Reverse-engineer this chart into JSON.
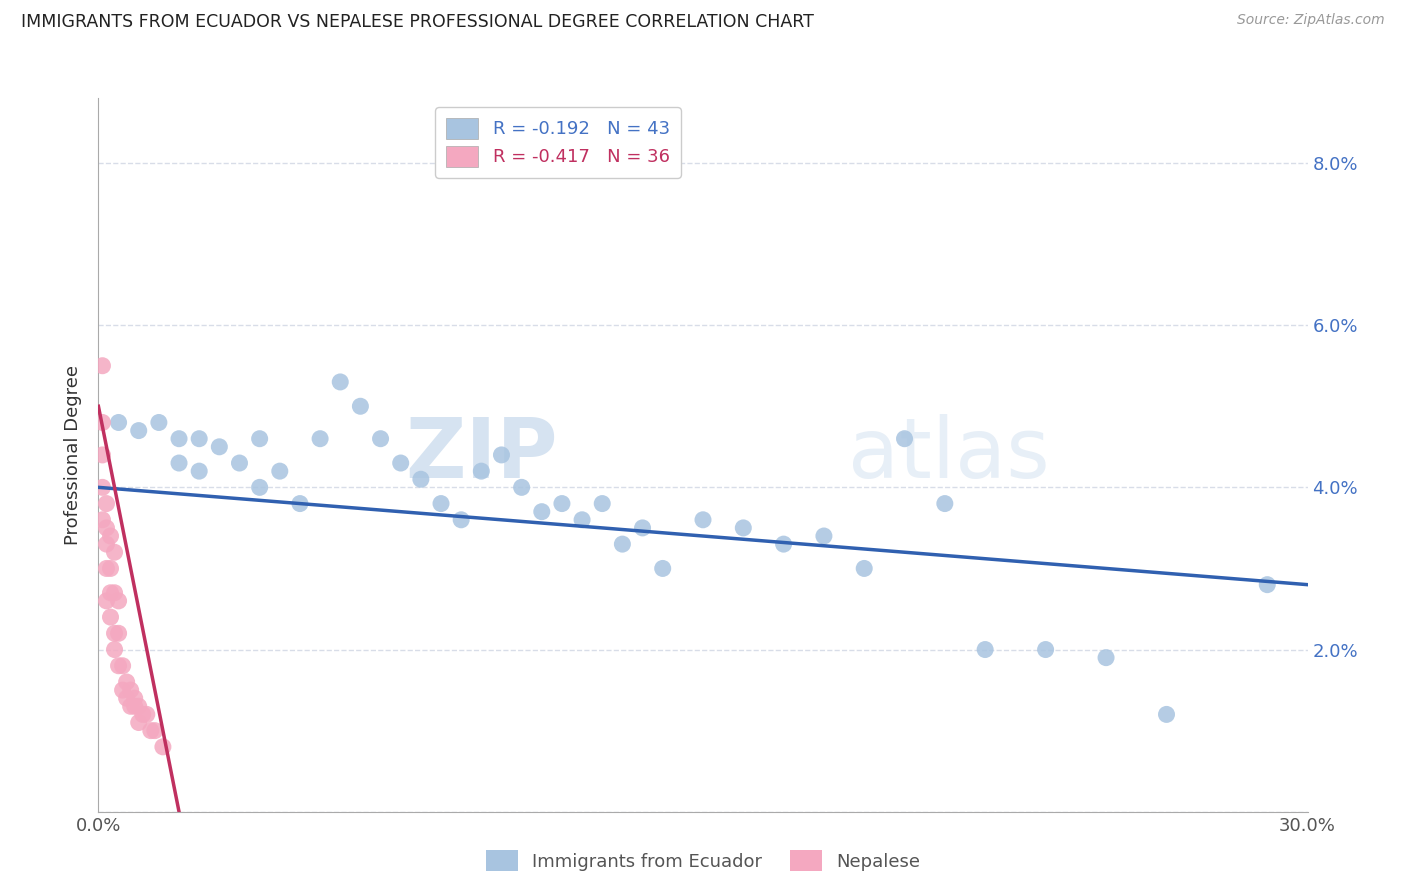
{
  "title": "IMMIGRANTS FROM ECUADOR VS NEPALESE PROFESSIONAL DEGREE CORRELATION CHART",
  "source": "Source: ZipAtlas.com",
  "ylabel": "Professional Degree",
  "x_min": 0.0,
  "x_max": 0.3,
  "y_min": 0.0,
  "y_max": 0.088,
  "x_ticks": [
    0.0,
    0.05,
    0.1,
    0.15,
    0.2,
    0.25,
    0.3
  ],
  "y_ticks": [
    0.0,
    0.02,
    0.04,
    0.06,
    0.08
  ],
  "y_tick_labels_right": [
    "",
    "2.0%",
    "4.0%",
    "6.0%",
    "8.0%"
  ],
  "legend_entries": [
    {
      "label": "R = -0.192   N = 43",
      "color": "#a8c4e0"
    },
    {
      "label": "R = -0.417   N = 36",
      "color": "#f4a8c0"
    }
  ],
  "legend_labels_bottom": [
    "Immigrants from Ecuador",
    "Nepalese"
  ],
  "watermark": "ZIPatlas",
  "blue_scatter_x": [
    0.005,
    0.01,
    0.015,
    0.02,
    0.02,
    0.025,
    0.025,
    0.03,
    0.035,
    0.04,
    0.04,
    0.045,
    0.05,
    0.055,
    0.06,
    0.065,
    0.07,
    0.075,
    0.08,
    0.085,
    0.09,
    0.095,
    0.1,
    0.105,
    0.11,
    0.115,
    0.12,
    0.125,
    0.13,
    0.135,
    0.14,
    0.15,
    0.16,
    0.17,
    0.18,
    0.19,
    0.2,
    0.21,
    0.22,
    0.235,
    0.25,
    0.265,
    0.29
  ],
  "blue_scatter_y": [
    0.048,
    0.047,
    0.048,
    0.046,
    0.043,
    0.046,
    0.042,
    0.045,
    0.043,
    0.046,
    0.04,
    0.042,
    0.038,
    0.046,
    0.053,
    0.05,
    0.046,
    0.043,
    0.041,
    0.038,
    0.036,
    0.042,
    0.044,
    0.04,
    0.037,
    0.038,
    0.036,
    0.038,
    0.033,
    0.035,
    0.03,
    0.036,
    0.035,
    0.033,
    0.034,
    0.03,
    0.046,
    0.038,
    0.02,
    0.02,
    0.019,
    0.012,
    0.028
  ],
  "pink_scatter_x": [
    0.001,
    0.001,
    0.001,
    0.001,
    0.001,
    0.002,
    0.002,
    0.002,
    0.002,
    0.002,
    0.003,
    0.003,
    0.003,
    0.003,
    0.004,
    0.004,
    0.004,
    0.004,
    0.005,
    0.005,
    0.005,
    0.006,
    0.006,
    0.007,
    0.007,
    0.008,
    0.008,
    0.009,
    0.009,
    0.01,
    0.01,
    0.011,
    0.012,
    0.013,
    0.014,
    0.016
  ],
  "pink_scatter_y": [
    0.055,
    0.048,
    0.044,
    0.04,
    0.036,
    0.038,
    0.035,
    0.033,
    0.03,
    0.026,
    0.034,
    0.03,
    0.027,
    0.024,
    0.032,
    0.027,
    0.022,
    0.02,
    0.026,
    0.022,
    0.018,
    0.018,
    0.015,
    0.016,
    0.014,
    0.015,
    0.013,
    0.014,
    0.013,
    0.013,
    0.011,
    0.012,
    0.012,
    0.01,
    0.01,
    0.008
  ],
  "blue_line_x": [
    0.0,
    0.3
  ],
  "blue_line_y": [
    0.04,
    0.028
  ],
  "pink_line_x": [
    0.0,
    0.02
  ],
  "pink_line_y": [
    0.05,
    0.0
  ],
  "blue_color": "#a8c4e0",
  "pink_color": "#f4a8c0",
  "blue_line_color": "#3060b0",
  "pink_line_color": "#c03060",
  "grid_color": "#d8dde8",
  "background_color": "#ffffff"
}
